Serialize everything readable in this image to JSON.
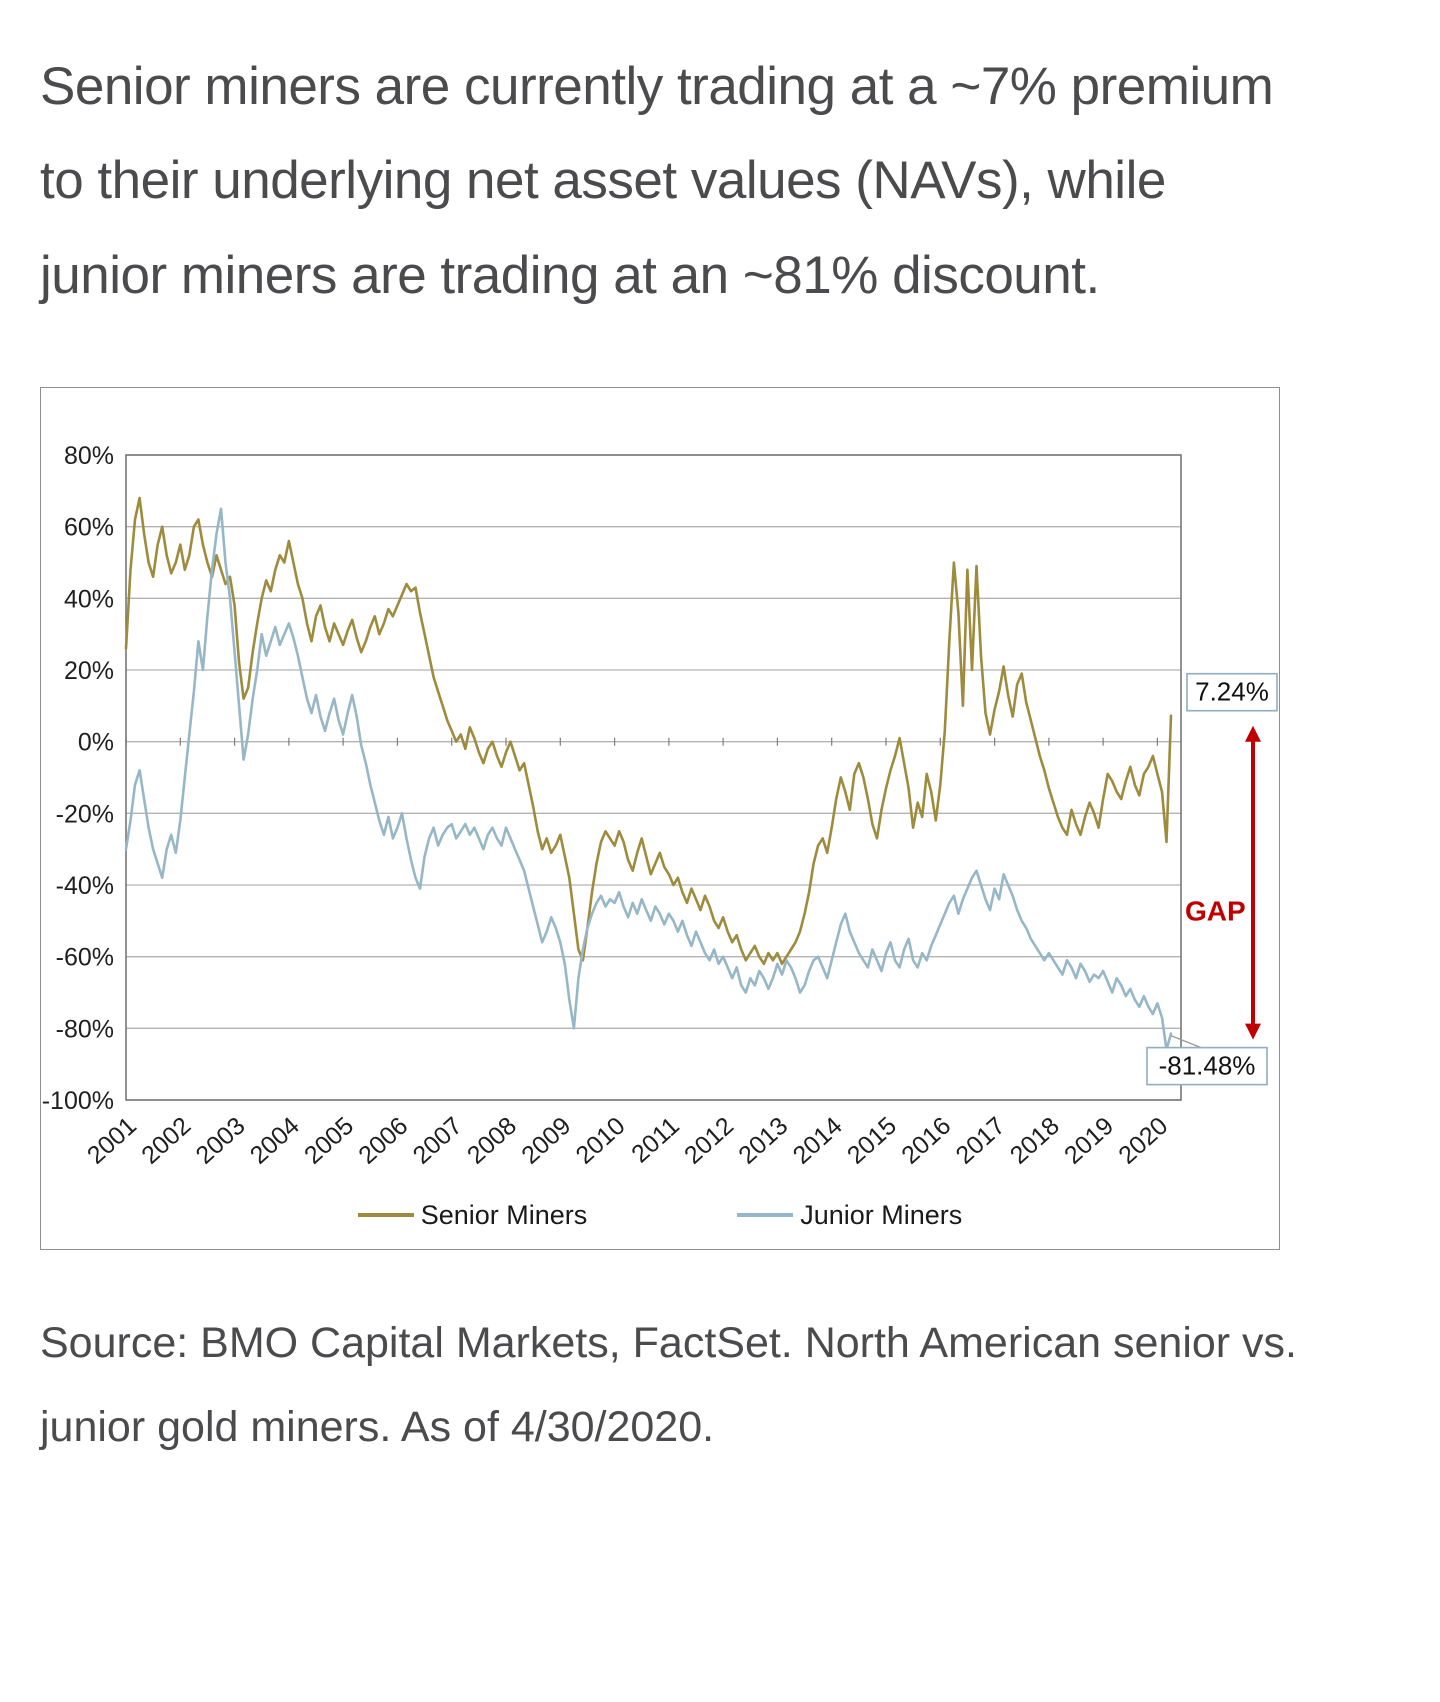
{
  "headline": "Senior miners are currently trading at a ~7% premium to their underlying net asset values (NAVs), while junior miners are trading at an ~81% discount.",
  "source": "Source: BMO Capital Markets, FactSet. North American senior vs. junior gold miners. As of 4/30/2020.",
  "chart_data": {
    "type": "line",
    "title": "",
    "xlabel": "",
    "ylabel": "",
    "ylim": [
      -100,
      80
    ],
    "grid": true,
    "legend_position": "bottom",
    "x_start": "2001-01",
    "x_end": "2020-04",
    "points_per_year": 12,
    "x_tick_labels": [
      "2001",
      "2002",
      "2003",
      "2004",
      "2005",
      "2006",
      "2007",
      "2008",
      "2009",
      "2010",
      "2011",
      "2012",
      "2013",
      "2014",
      "2015",
      "2016",
      "2017",
      "2018",
      "2019",
      "2020"
    ],
    "y_ticks": [
      {
        "label": "80%",
        "value": 80
      },
      {
        "label": "60%",
        "value": 60
      },
      {
        "label": "40%",
        "value": 40
      },
      {
        "label": "20%",
        "value": 20
      },
      {
        "label": "0%",
        "value": 0
      },
      {
        "label": "-20%",
        "value": -20
      },
      {
        "label": "-40%",
        "value": -40
      },
      {
        "label": "-60%",
        "value": -60
      },
      {
        "label": "-80%",
        "value": -80
      },
      {
        "label": "-100%",
        "value": -100
      }
    ],
    "series": [
      {
        "name": "Senior Miners",
        "color": "#9e8b3d",
        "values": [
          26,
          48,
          62,
          68,
          58,
          50,
          46,
          55,
          60,
          52,
          47,
          50,
          55,
          48,
          52,
          60,
          62,
          55,
          50,
          46,
          52,
          48,
          44,
          46,
          38,
          22,
          12,
          15,
          25,
          33,
          40,
          45,
          42,
          48,
          52,
          50,
          56,
          50,
          44,
          40,
          33,
          28,
          35,
          38,
          32,
          28,
          33,
          30,
          27,
          31,
          34,
          29,
          25,
          28,
          32,
          35,
          30,
          33,
          37,
          35,
          38,
          41,
          44,
          42,
          43,
          36,
          30,
          24,
          18,
          14,
          10,
          6,
          3,
          0,
          2,
          -2,
          4,
          1,
          -3,
          -6,
          -2,
          0,
          -4,
          -7,
          -3,
          0,
          -4,
          -8,
          -6,
          -12,
          -18,
          -25,
          -30,
          -27,
          -31,
          -29,
          -26,
          -32,
          -38,
          -48,
          -58,
          -61,
          -52,
          -42,
          -34,
          -28,
          -25,
          -27,
          -29,
          -25,
          -28,
          -33,
          -36,
          -31,
          -27,
          -32,
          -37,
          -34,
          -31,
          -35,
          -37,
          -40,
          -38,
          -42,
          -45,
          -41,
          -44,
          -47,
          -43,
          -46,
          -50,
          -52,
          -49,
          -53,
          -56,
          -54,
          -58,
          -61,
          -59,
          -57,
          -60,
          -62,
          -59,
          -61,
          -59,
          -62,
          -60,
          -58,
          -56,
          -53,
          -48,
          -42,
          -34,
          -29,
          -27,
          -31,
          -24,
          -16,
          -10,
          -14,
          -19,
          -9,
          -6,
          -10,
          -16,
          -23,
          -27,
          -19,
          -13,
          -8,
          -4,
          1,
          -6,
          -13,
          -24,
          -17,
          -21,
          -9,
          -14,
          -22,
          -12,
          3,
          28,
          50,
          36,
          10,
          48,
          20,
          49,
          24,
          8,
          2,
          9,
          14,
          21,
          13,
          7,
          16,
          19,
          11,
          6,
          1,
          -4,
          -8,
          -13,
          -17,
          -21,
          -24,
          -26,
          -19,
          -23,
          -26,
          -21,
          -17,
          -20,
          -24,
          -16,
          -9,
          -11,
          -14,
          -16,
          -11,
          -7,
          -12,
          -15,
          -9,
          -7,
          -4,
          -9,
          -14,
          -28,
          7.24
        ]
      },
      {
        "name": "Junior Miners",
        "color": "#96b7c7",
        "values": [
          -30,
          -22,
          -12,
          -8,
          -16,
          -24,
          -30,
          -34,
          -38,
          -30,
          -26,
          -31,
          -22,
          -10,
          2,
          14,
          28,
          20,
          35,
          48,
          58,
          65,
          50,
          40,
          25,
          10,
          -5,
          2,
          12,
          20,
          30,
          24,
          28,
          32,
          27,
          30,
          33,
          29,
          24,
          18,
          12,
          8,
          13,
          7,
          3,
          8,
          12,
          6,
          2,
          8,
          13,
          7,
          -1,
          -6,
          -12,
          -17,
          -22,
          -26,
          -21,
          -27,
          -24,
          -20,
          -27,
          -33,
          -38,
          -41,
          -32,
          -27,
          -24,
          -29,
          -26,
          -24,
          -23,
          -27,
          -25,
          -23,
          -26,
          -24,
          -27,
          -30,
          -26,
          -24,
          -27,
          -29,
          -24,
          -27,
          -30,
          -33,
          -36,
          -41,
          -46,
          -51,
          -56,
          -53,
          -49,
          -52,
          -56,
          -62,
          -72,
          -80,
          -66,
          -58,
          -52,
          -48,
          -45,
          -43,
          -46,
          -44,
          -45,
          -42,
          -46,
          -49,
          -45,
          -48,
          -44,
          -47,
          -50,
          -46,
          -48,
          -51,
          -48,
          -50,
          -53,
          -50,
          -54,
          -57,
          -53,
          -56,
          -59,
          -61,
          -58,
          -62,
          -60,
          -63,
          -66,
          -63,
          -68,
          -70,
          -66,
          -68,
          -64,
          -66,
          -69,
          -66,
          -62,
          -65,
          -61,
          -63,
          -66,
          -70,
          -68,
          -64,
          -61,
          -60,
          -63,
          -66,
          -61,
          -56,
          -51,
          -48,
          -53,
          -56,
          -59,
          -61,
          -63,
          -58,
          -61,
          -64,
          -59,
          -56,
          -61,
          -63,
          -58,
          -55,
          -61,
          -63,
          -59,
          -61,
          -57,
          -54,
          -51,
          -48,
          -45,
          -43,
          -48,
          -44,
          -41,
          -38,
          -36,
          -40,
          -44,
          -47,
          -41,
          -44,
          -37,
          -40,
          -43,
          -47,
          -50,
          -52,
          -55,
          -57,
          -59,
          -61,
          -59,
          -61,
          -63,
          -65,
          -61,
          -63,
          -66,
          -62,
          -64,
          -67,
          -65,
          -66,
          -64,
          -67,
          -70,
          -66,
          -68,
          -71,
          -69,
          -72,
          -74,
          -71,
          -74,
          -76,
          -73,
          -77,
          -86,
          -81.48
        ]
      }
    ],
    "annotations": {
      "senior_value_label": "7.24%",
      "junior_value_label": "-81.48%",
      "gap_label": "GAP",
      "gap_color": "#c00000",
      "box_border_color": "#8eaec2",
      "leader_color": "#9a9a9a"
    },
    "legend": [
      "Senior Miners",
      "Junior Miners"
    ]
  }
}
